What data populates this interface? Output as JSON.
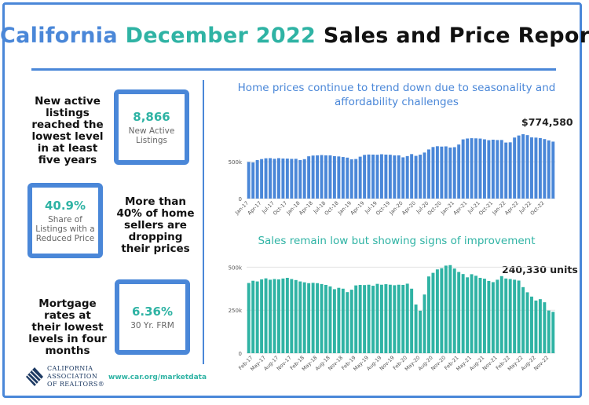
{
  "title": {
    "part1": "California",
    "part2": "December 2022",
    "part3": "Sales and Price Report"
  },
  "stats": {
    "listings": {
      "text": "New active listings reached the lowest level in at least five years",
      "value": "8,866",
      "label": "New Active Listings"
    },
    "reduced": {
      "text": "More than 40% of home sellers are dropping their prices",
      "value": "40.9%",
      "label": "Share of Listings with a Reduced Price"
    },
    "mortgage": {
      "text": "Mortgage rates at their lowest levels in four months",
      "value": "6.36%",
      "label": "30 Yr. FRM"
    }
  },
  "footer": {
    "logo_line1": "CALIFORNIA",
    "logo_line2": "ASSOCIATION",
    "logo_line3": "OF REALTORS®",
    "url": "www.car.org/marketdata"
  },
  "colors": {
    "blue": "#4a87d8",
    "teal": "#2fb3a4"
  },
  "chart_data": [
    {
      "type": "bar",
      "title": "Home prices continue to trend down due to seasonality and affordability challenges",
      "callout": "$774,580",
      "color": "#4a87d8",
      "x": [
        "Jan-17",
        "Feb-17",
        "Mar-17",
        "Apr-17",
        "May-17",
        "Jun-17",
        "Jul-17",
        "Aug-17",
        "Sep-17",
        "Oct-17",
        "Nov-17",
        "Dec-17",
        "Jan-18",
        "Feb-18",
        "Mar-18",
        "Apr-18",
        "May-18",
        "Jun-18",
        "Jul-18",
        "Aug-18",
        "Sep-18",
        "Oct-18",
        "Nov-18",
        "Dec-18",
        "Jan-19",
        "Feb-19",
        "Mar-19",
        "Apr-19",
        "May-19",
        "Jun-19",
        "Jul-19",
        "Aug-19",
        "Sep-19",
        "Oct-19",
        "Nov-19",
        "Dec-19",
        "Jan-20",
        "Feb-20",
        "Mar-20",
        "Apr-20",
        "May-20",
        "Jun-20",
        "Jul-20",
        "Aug-20",
        "Sep-20",
        "Oct-20",
        "Nov-20",
        "Dec-20",
        "Jan-21",
        "Feb-21",
        "Mar-21",
        "Apr-21",
        "May-21",
        "Jun-21",
        "Jul-21",
        "Aug-21",
        "Sep-21",
        "Oct-21",
        "Nov-21",
        "Dec-21",
        "Jan-22",
        "Feb-22",
        "Mar-22",
        "Apr-22",
        "May-22",
        "Jun-22",
        "Jul-22",
        "Aug-22",
        "Sep-22",
        "Oct-22",
        "Nov-22",
        "Dec-22"
      ],
      "tick_labels": [
        "Jan-17",
        "Apr-17",
        "Jul-17",
        "Oct-17",
        "Jan-18",
        "Apr-18",
        "Jul-18",
        "Oct-18",
        "Jan-19",
        "Apr-19",
        "Jul-19",
        "Oct-19",
        "Jan-20",
        "Apr-20",
        "Jul-20",
        "Oct-20",
        "Jan-21",
        "Apr-21",
        "Jul-21",
        "Oct-21",
        "Jan-22",
        "Apr-22",
        "Jul-22",
        "Oct-22"
      ],
      "values": [
        498000,
        492000,
        524000,
        537000,
        548000,
        550000,
        541000,
        550000,
        545000,
        544000,
        540000,
        541000,
        523000,
        536000,
        575000,
        585000,
        588000,
        592000,
        588000,
        588000,
        577000,
        573000,
        565000,
        557000,
        534000,
        538000,
        570000,
        594000,
        599000,
        598000,
        596000,
        603000,
        598000,
        596000,
        587000,
        588000,
        561000,
        578000,
        605000,
        581000,
        597000,
        626000,
        668000,
        701000,
        712000,
        707000,
        710000,
        694000,
        699000,
        735000,
        805000,
        817000,
        821000,
        819000,
        816000,
        806000,
        794000,
        801000,
        796000,
        797000,
        762000,
        765000,
        830000,
        858000,
        875000,
        863000,
        832000,
        829000,
        823000,
        809000,
        791000,
        774580
      ],
      "ylim": [
        0,
        950000
      ],
      "yticks": [
        "0",
        "500k"
      ],
      "ytick_values": [
        0,
        500000
      ]
    },
    {
      "type": "bar",
      "title": "Sales remain low but showing signs of improvement",
      "callout": "240,330 units",
      "color": "#2fb3a4",
      "x": [
        "Jan-17",
        "Feb-17",
        "Mar-17",
        "Apr-17",
        "May-17",
        "Jun-17",
        "Jul-17",
        "Aug-17",
        "Sep-17",
        "Oct-17",
        "Nov-17",
        "Dec-17",
        "Jan-18",
        "Feb-18",
        "Mar-18",
        "Apr-18",
        "May-18",
        "Jun-18",
        "Jul-18",
        "Aug-18",
        "Sep-18",
        "Oct-18",
        "Nov-18",
        "Dec-18",
        "Jan-19",
        "Feb-19",
        "Mar-19",
        "Apr-19",
        "May-19",
        "Jun-19",
        "Jul-19",
        "Aug-19",
        "Sep-19",
        "Oct-19",
        "Nov-19",
        "Dec-19",
        "Jan-20",
        "Feb-20",
        "Mar-20",
        "Apr-20",
        "May-20",
        "Jun-20",
        "Jul-20",
        "Aug-20",
        "Sep-20",
        "Oct-20",
        "Nov-20",
        "Dec-20",
        "Jan-21",
        "Feb-21",
        "Mar-21",
        "Apr-21",
        "May-21",
        "Jun-21",
        "Jul-21",
        "Aug-21",
        "Sep-21",
        "Oct-21",
        "Nov-21",
        "Dec-21",
        "Jan-22",
        "Feb-22",
        "Mar-22",
        "Apr-22",
        "May-22",
        "Jun-22",
        "Jul-22",
        "Aug-22",
        "Sep-22",
        "Oct-22",
        "Nov-22",
        "Dec-22"
      ],
      "tick_labels": [
        "Feb-17",
        "May-17",
        "Aug-17",
        "Nov-17",
        "Feb-18",
        "May-18",
        "Aug-18",
        "Nov-18",
        "Feb-19",
        "May-19",
        "Aug-19",
        "Nov-19",
        "Feb-20",
        "May-20",
        "Aug-20",
        "Nov-20",
        "Feb-21",
        "May-21",
        "Aug-21",
        "Nov-21",
        "Feb-22",
        "May-22",
        "Aug-22",
        "Nov-22"
      ],
      "tick_offset": 1,
      "values": [
        408000,
        421000,
        417000,
        429000,
        435000,
        427000,
        431000,
        429000,
        434000,
        438000,
        431000,
        425000,
        417000,
        412000,
        407000,
        409000,
        407000,
        402000,
        397000,
        388000,
        372000,
        380000,
        375000,
        355000,
        369000,
        394000,
        397000,
        396000,
        398000,
        392000,
        403000,
        398000,
        401000,
        398000,
        395000,
        398000,
        397000,
        404000,
        375000,
        283000,
        247000,
        341000,
        446000,
        467000,
        487000,
        494000,
        509000,
        512000,
        492000,
        472000,
        460000,
        441000,
        459000,
        450000,
        438000,
        433000,
        420000,
        413000,
        427000,
        448000,
        434000,
        431000,
        427000,
        422000,
        384000,
        354000,
        329000,
        306000,
        314000,
        296000,
        248000,
        240330
      ],
      "ylim": [
        0,
        520000
      ],
      "yticks": [
        "0",
        "250k",
        "500k"
      ],
      "ytick_values": [
        0,
        250000,
        500000
      ]
    }
  ]
}
